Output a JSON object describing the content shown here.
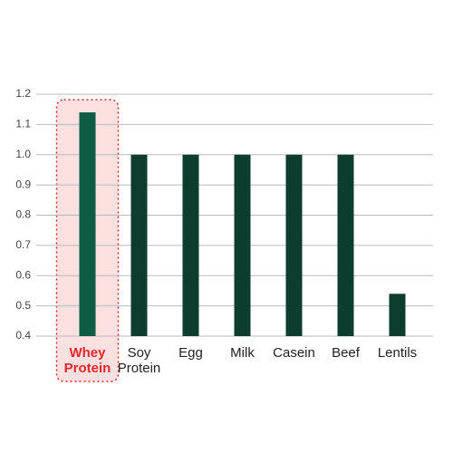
{
  "chart_data": {
    "type": "bar",
    "categories": [
      "Whey Protein",
      "Soy Protein",
      "Egg",
      "Milk",
      "Casein",
      "Beef",
      "Lentils"
    ],
    "values": [
      1.14,
      1.0,
      1.0,
      1.0,
      1.0,
      1.0,
      0.54
    ],
    "color": "#0d3d2e",
    "highlight_index": 0,
    "highlight_color": "#e8262b",
    "highlight_bar_color": "#0f5c45",
    "ylim": [
      0.4,
      1.2
    ],
    "yticks": [
      0.4,
      0.5,
      0.6,
      0.7,
      0.8,
      0.9,
      {
        "value": 1,
        "label": "1.0"
      },
      1.1,
      1.2
    ],
    "grid": true
  }
}
